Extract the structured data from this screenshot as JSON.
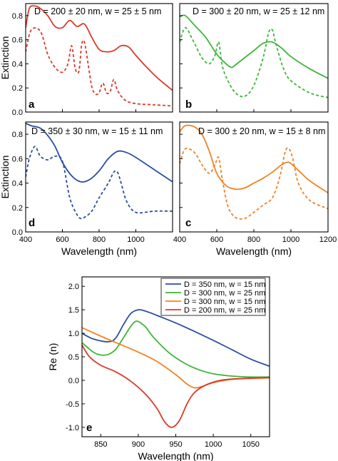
{
  "chart_data": [
    {
      "type": "line",
      "panel": "a",
      "title": "D = 200 ± 20 nm, w = 25 ± 5 nm",
      "ylabel": "Extinction",
      "xlim": [
        400,
        1200
      ],
      "ylim": [
        0,
        0.9
      ],
      "yticks": [
        "0.0",
        "0.2",
        "0.4",
        "0.6",
        "0.8"
      ],
      "color": "#d93a2b",
      "series": [
        {
          "style": "solid",
          "x": [
            400,
            420,
            450,
            480,
            520,
            560,
            600,
            640,
            680,
            720,
            760,
            800,
            840,
            880,
            920,
            960,
            1000,
            1060,
            1120,
            1200
          ],
          "y": [
            0.7,
            0.86,
            0.88,
            0.86,
            0.8,
            0.71,
            0.7,
            0.76,
            0.71,
            0.73,
            0.62,
            0.52,
            0.5,
            0.51,
            0.55,
            0.54,
            0.47,
            0.37,
            0.28,
            0.18
          ]
        },
        {
          "style": "dashed",
          "x": [
            400,
            430,
            480,
            520,
            560,
            600,
            630,
            650,
            670,
            690,
            705,
            720,
            740,
            760,
            780,
            800,
            820,
            840,
            860,
            880,
            900,
            940,
            1000,
            1100,
            1200
          ],
          "y": [
            0.5,
            0.68,
            0.67,
            0.48,
            0.37,
            0.33,
            0.4,
            0.55,
            0.36,
            0.34,
            0.56,
            0.58,
            0.4,
            0.21,
            0.15,
            0.16,
            0.24,
            0.16,
            0.17,
            0.27,
            0.18,
            0.1,
            0.07,
            0.06,
            0.05
          ]
        }
      ]
    },
    {
      "type": "line",
      "panel": "b",
      "title": "D = 300 ± 20 nm, w = 25 ± 12 nm",
      "xlim": [
        400,
        1200
      ],
      "ylim": [
        0,
        0.9
      ],
      "color": "#3db53a",
      "series": [
        {
          "style": "solid",
          "x": [
            400,
            430,
            480,
            540,
            600,
            650,
            680,
            700,
            750,
            800,
            850,
            900,
            950,
            1000,
            1100,
            1200
          ],
          "y": [
            0.79,
            0.8,
            0.72,
            0.62,
            0.48,
            0.4,
            0.37,
            0.39,
            0.45,
            0.51,
            0.57,
            0.58,
            0.53,
            0.46,
            0.36,
            0.28
          ]
        },
        {
          "style": "dashed",
          "x": [
            400,
            430,
            470,
            520,
            560,
            590,
            610,
            630,
            660,
            700,
            750,
            800,
            850,
            880,
            900,
            920,
            960,
            1000,
            1100,
            1200
          ],
          "y": [
            0.58,
            0.7,
            0.6,
            0.45,
            0.4,
            0.47,
            0.58,
            0.38,
            0.26,
            0.16,
            0.13,
            0.22,
            0.45,
            0.66,
            0.68,
            0.56,
            0.36,
            0.26,
            0.16,
            0.12
          ]
        }
      ]
    },
    {
      "type": "line",
      "panel": "d",
      "title": "D = 350 ± 30 nm, w = 15 ± 11 nm",
      "ylabel": "Extinction",
      "xlabel": "Wavelength (nm)",
      "xlim": [
        400,
        1200
      ],
      "ylim": [
        0,
        0.9
      ],
      "xticks": [
        "400",
        "600",
        "800",
        "1000"
      ],
      "yticks": [
        "0.0",
        "0.2",
        "0.4",
        "0.6",
        "0.8"
      ],
      "color": "#2b4ea2",
      "series": [
        {
          "style": "solid",
          "x": [
            400,
            430,
            480,
            520,
            560,
            600,
            650,
            700,
            750,
            800,
            850,
            900,
            950,
            1000,
            1100,
            1200
          ],
          "y": [
            0.89,
            0.87,
            0.85,
            0.79,
            0.7,
            0.57,
            0.46,
            0.41,
            0.43,
            0.5,
            0.6,
            0.66,
            0.65,
            0.61,
            0.51,
            0.41
          ]
        },
        {
          "style": "dashed",
          "x": [
            400,
            420,
            450,
            480,
            520,
            560,
            600,
            640,
            680,
            700,
            720,
            760,
            800,
            850,
            880,
            900,
            920,
            950,
            1000,
            1100,
            1200
          ],
          "y": [
            0.45,
            0.6,
            0.7,
            0.62,
            0.59,
            0.62,
            0.58,
            0.28,
            0.14,
            0.11,
            0.12,
            0.17,
            0.28,
            0.4,
            0.49,
            0.49,
            0.4,
            0.25,
            0.16,
            0.17,
            0.17
          ]
        }
      ]
    },
    {
      "type": "line",
      "panel": "c",
      "title": "D = 300 ± 20 nm, w = 15 ± 8 nm",
      "xlabel": "Wavelength (nm)",
      "xlim": [
        400,
        1200
      ],
      "ylim": [
        0,
        0.9
      ],
      "xticks": [
        "400",
        "600",
        "800",
        "1000",
        "1200"
      ],
      "color": "#f28222",
      "series": [
        {
          "style": "solid",
          "x": [
            400,
            430,
            480,
            520,
            560,
            600,
            650,
            700,
            750,
            800,
            850,
            900,
            950,
            980,
            1000,
            1050,
            1100,
            1200
          ],
          "y": [
            0.82,
            0.87,
            0.86,
            0.8,
            0.66,
            0.48,
            0.38,
            0.35,
            0.36,
            0.4,
            0.44,
            0.49,
            0.55,
            0.57,
            0.56,
            0.49,
            0.42,
            0.32
          ]
        },
        {
          "style": "dashed",
          "x": [
            400,
            430,
            480,
            520,
            560,
            590,
            610,
            630,
            660,
            700,
            750,
            800,
            850,
            900,
            940,
            970,
            990,
            1010,
            1040,
            1100,
            1200
          ],
          "y": [
            0.56,
            0.68,
            0.65,
            0.55,
            0.48,
            0.55,
            0.61,
            0.43,
            0.21,
            0.12,
            0.11,
            0.16,
            0.22,
            0.28,
            0.45,
            0.66,
            0.68,
            0.6,
            0.4,
            0.26,
            0.19
          ]
        }
      ]
    },
    {
      "type": "line",
      "panel": "e",
      "xlabel": "Wavelength (nm)",
      "ylabel": "Re (n)",
      "xlim": [
        825,
        1075
      ],
      "ylim": [
        -1.2,
        2.2
      ],
      "xticks": [
        "850",
        "900",
        "950",
        "1000",
        "1050"
      ],
      "yticks": [
        "-1.0",
        "-0.5",
        "0.0",
        "0.5",
        "1.0",
        "1.5",
        "2.0"
      ],
      "legend_position": "top-right",
      "series": [
        {
          "name": "D = 350 nm, w = 15 nm",
          "color": "#2b4ea2",
          "x": [
            825,
            840,
            860,
            870,
            880,
            890,
            900,
            910,
            925,
            950,
            975,
            1000,
            1025,
            1050,
            1075
          ],
          "y": [
            1.0,
            0.88,
            0.82,
            0.9,
            1.18,
            1.42,
            1.5,
            1.47,
            1.38,
            1.22,
            1.04,
            0.85,
            0.65,
            0.45,
            0.3
          ]
        },
        {
          "name": "D = 300 nm, w = 25 nm",
          "color": "#3db53a",
          "x": [
            825,
            840,
            850,
            860,
            870,
            880,
            890,
            895,
            900,
            910,
            920,
            940,
            960,
            980,
            1000,
            1025,
            1050,
            1075
          ],
          "y": [
            0.8,
            0.6,
            0.54,
            0.55,
            0.66,
            0.9,
            1.15,
            1.24,
            1.25,
            1.13,
            0.92,
            0.6,
            0.38,
            0.23,
            0.14,
            0.09,
            0.07,
            0.07
          ]
        },
        {
          "name": "D = 300 nm, w = 15 nm",
          "color": "#f28222",
          "x": [
            825,
            850,
            875,
            900,
            925,
            950,
            965,
            975,
            985,
            1000,
            1025,
            1050,
            1075
          ],
          "y": [
            1.12,
            0.94,
            0.77,
            0.6,
            0.4,
            0.12,
            -0.08,
            -0.16,
            -0.13,
            -0.05,
            0.02,
            0.04,
            0.05
          ]
        },
        {
          "name": "D = 200 nm, w = 25 nm",
          "color": "#d93a2b",
          "x": [
            825,
            835,
            850,
            870,
            890,
            910,
            925,
            935,
            945,
            955,
            965,
            975,
            990,
            1010,
            1040,
            1075
          ],
          "y": [
            0.75,
            0.5,
            0.32,
            0.18,
            -0.02,
            -0.3,
            -0.6,
            -0.88,
            -1.0,
            -0.85,
            -0.5,
            -0.26,
            -0.1,
            0.0,
            0.04,
            0.06
          ]
        }
      ]
    }
  ]
}
